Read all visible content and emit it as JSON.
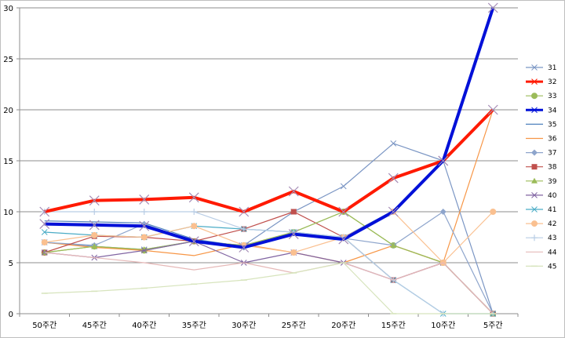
{
  "chart_data": {
    "type": "line",
    "title": "",
    "xlabel": "",
    "ylabel": "",
    "ylim": [
      0,
      30
    ],
    "y_ticks": [
      "0",
      "5",
      "10",
      "15",
      "20",
      "25",
      "30"
    ],
    "categories": [
      "50주간",
      "45주간",
      "40주간",
      "35주간",
      "30주간",
      "25주간",
      "20주간",
      "15주간",
      "10주간",
      "5주간"
    ],
    "grid": "horizontal",
    "legend_position": "right",
    "series": [
      {
        "name": "31",
        "color": "#7b96c4",
        "marker": "x",
        "width": 1.2,
        "values": [
          7,
          6.6,
          6.3,
          7.1,
          6.7,
          10,
          12.5,
          16.7,
          15,
          0
        ]
      },
      {
        "name": "32",
        "color": "#ff1a00",
        "marker": "x",
        "width": 4,
        "values": [
          10,
          11.1,
          11.2,
          11.4,
          10,
          12,
          10,
          13.3,
          15,
          20
        ]
      },
      {
        "name": "33",
        "color": "#9bbb59",
        "marker": "circle",
        "width": 1.2,
        "values": [
          6,
          6.6,
          6.2,
          7.1,
          6.7,
          8,
          10,
          6.7,
          5,
          0
        ]
      },
      {
        "name": "34",
        "color": "#0010d8",
        "marker": "x",
        "width": 4,
        "values": [
          8.8,
          8.7,
          8.6,
          7.1,
          6.5,
          7.8,
          7.3,
          10,
          15,
          30
        ]
      },
      {
        "name": "35",
        "color": "#4f81bd",
        "marker": "none",
        "width": 1.2,
        "values": [
          9.1,
          9,
          8.9,
          7.3,
          6.6,
          7.9,
          7.5,
          10.1,
          15.1,
          30.1
        ]
      },
      {
        "name": "36",
        "color": "#f79646",
        "marker": "none",
        "width": 1.2,
        "values": [
          7,
          6.5,
          6.2,
          5.7,
          6.8,
          6,
          5,
          6.7,
          5,
          20
        ]
      },
      {
        "name": "37",
        "color": "#8ea5cc",
        "marker": "diamond",
        "width": 1.2,
        "values": [
          7,
          6.7,
          8.8,
          7.1,
          6.5,
          8,
          7.4,
          6.7,
          10,
          0
        ]
      },
      {
        "name": "38",
        "color": "#c0504d",
        "marker": "square",
        "width": 1.2,
        "values": [
          6,
          7.6,
          7.5,
          7.1,
          8.3,
          10,
          7.5,
          3.3,
          5,
          0
        ]
      },
      {
        "name": "39",
        "color": "#9bbb59",
        "marker": "triangle",
        "width": 1.2,
        "values": [
          6,
          6.6,
          6.3,
          7.1,
          6.7,
          8,
          10,
          6.7,
          5,
          0
        ]
      },
      {
        "name": "40",
        "color": "#8064a2",
        "marker": "x",
        "width": 1.2,
        "values": [
          6,
          5.5,
          6.2,
          7.1,
          5,
          6,
          5,
          3.3,
          5,
          0
        ]
      },
      {
        "name": "41",
        "color": "#4bacc6",
        "marker": "x",
        "width": 1.2,
        "values": [
          8,
          7.7,
          7.5,
          8.6,
          8.3,
          8,
          7.5,
          3.3,
          0,
          0
        ]
      },
      {
        "name": "42",
        "color": "#fac090",
        "marker": "circle",
        "width": 1.2,
        "values": [
          7,
          7.7,
          7.5,
          8.6,
          6.7,
          6,
          7.5,
          10,
          5,
          10
        ]
      },
      {
        "name": "43",
        "color": "#b9cde5",
        "marker": "plus",
        "width": 1.2,
        "values": [
          10,
          10,
          10,
          10,
          8.3,
          8,
          7.5,
          3.3,
          0,
          0
        ]
      },
      {
        "name": "44",
        "color": "#e6b9b8",
        "marker": "none",
        "width": 1.2,
        "values": [
          6,
          5.5,
          5,
          4.3,
          5,
          4,
          5,
          3.3,
          5,
          0
        ]
      },
      {
        "name": "45",
        "color": "#d7e4bd",
        "marker": "dash",
        "width": 1.2,
        "values": [
          2,
          2.2,
          2.5,
          2.9,
          3.3,
          4,
          5,
          0,
          0,
          0
        ]
      }
    ]
  }
}
